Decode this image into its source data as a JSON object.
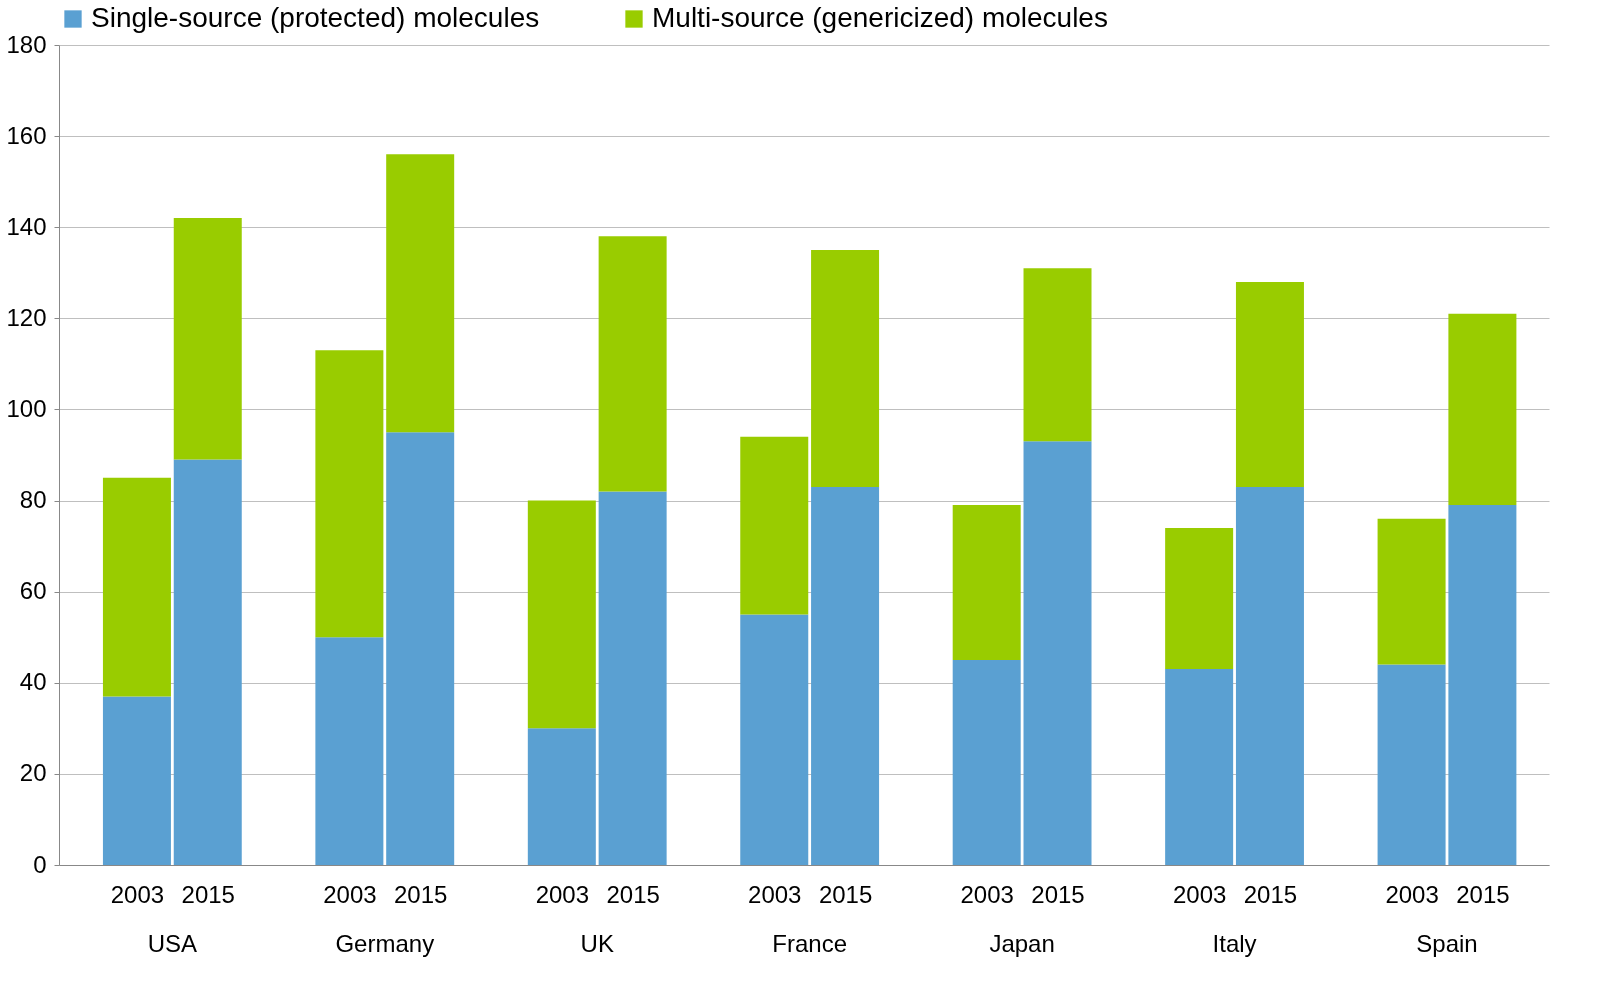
{
  "chart_data": {
    "type": "bar",
    "stacked": true,
    "categories": [
      "2003",
      "2015",
      "2003",
      "2015",
      "2003",
      "2015",
      "2003",
      "2015",
      "2003",
      "2015",
      "2003",
      "2015",
      "2003",
      "2015"
    ],
    "series": [
      {
        "name": "Single-source (protected) molecules",
        "color": "#5aa0d2",
        "values": [
          37,
          89,
          50,
          95,
          30,
          82,
          55,
          83,
          45,
          93,
          43,
          83,
          44,
          79
        ]
      },
      {
        "name": "Multi-source (genericized) molecules",
        "color": "#99cc00",
        "values": [
          48,
          53,
          63,
          61,
          50,
          56,
          39,
          52,
          34,
          38,
          31,
          45,
          32,
          42
        ]
      }
    ],
    "annotations": [
      "USA",
      "Germany",
      "UK",
      "France",
      "Japan",
      "Italy",
      "Spain"
    ],
    "ylim": [
      0,
      180
    ],
    "yticks": [
      0,
      20,
      40,
      60,
      80,
      100,
      120,
      140,
      160,
      180
    ],
    "grid": "y",
    "legend": "top"
  }
}
